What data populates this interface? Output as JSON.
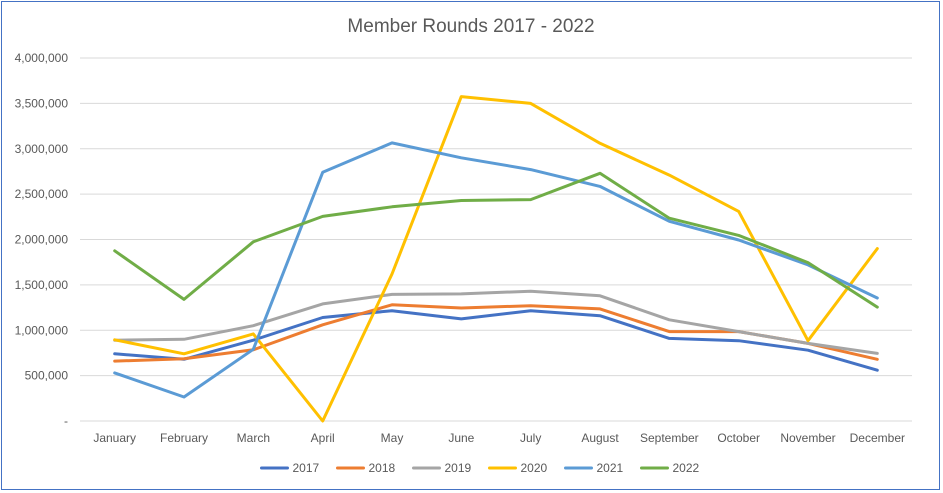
{
  "chart_data": {
    "type": "line",
    "title": "Member Rounds 2017 - 2022",
    "xlabel": "",
    "ylabel": "",
    "categories": [
      "January",
      "February",
      "March",
      "April",
      "May",
      "June",
      "July",
      "August",
      "September",
      "October",
      "November",
      "December"
    ],
    "ylim": [
      0,
      4000000
    ],
    "y_ticks": [
      0,
      500000,
      1000000,
      1500000,
      2000000,
      2500000,
      3000000,
      3500000,
      4000000
    ],
    "y_tick_labels": [
      "-",
      "500,000",
      "1,000,000",
      "1,500,000",
      "2,000,000",
      "2,500,000",
      "3,000,000",
      "3,500,000",
      "4,000,000"
    ],
    "grid": true,
    "legend_position": "bottom",
    "series": [
      {
        "name": "2017",
        "color": "#4472c4",
        "values": [
          740000,
          680000,
          890000,
          1140000,
          1215000,
          1125000,
          1215000,
          1160000,
          910000,
          885000,
          780000,
          560000
        ]
      },
      {
        "name": "2018",
        "color": "#ed7d31",
        "values": [
          660000,
          685000,
          785000,
          1060000,
          1280000,
          1245000,
          1270000,
          1235000,
          985000,
          985000,
          855000,
          680000
        ]
      },
      {
        "name": "2019",
        "color": "#a5a5a5",
        "values": [
          890000,
          900000,
          1050000,
          1290000,
          1395000,
          1400000,
          1430000,
          1380000,
          1115000,
          985000,
          855000,
          745000
        ]
      },
      {
        "name": "2020",
        "color": "#ffc000",
        "values": [
          895000,
          740000,
          960000,
          0,
          1620000,
          3575000,
          3500000,
          3060000,
          2710000,
          2310000,
          885000,
          1900000
        ]
      },
      {
        "name": "2021",
        "color": "#5b9bd5",
        "values": [
          530000,
          265000,
          790000,
          2740000,
          3065000,
          2900000,
          2770000,
          2585000,
          2200000,
          1995000,
          1720000,
          1355000
        ]
      },
      {
        "name": "2022",
        "color": "#70ad47",
        "values": [
          1875000,
          1340000,
          1975000,
          2255000,
          2360000,
          2430000,
          2440000,
          2730000,
          2235000,
          2045000,
          1745000,
          1255000
        ]
      }
    ]
  }
}
